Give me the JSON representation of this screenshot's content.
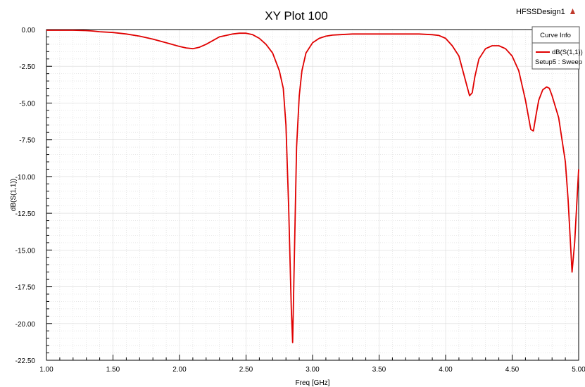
{
  "design_name": "HFSSDesign1",
  "legend": {
    "header": "Curve Info",
    "entry_name": "dB(S(1,1))",
    "entry_sub": "Setup5 : Sweep"
  },
  "colors": {
    "curve": "#e00000",
    "grid": "#d9d9d9",
    "logo": "#c0392b"
  },
  "icons": {
    "logo": "ansoft-logo-icon"
  },
  "chart_data": {
    "type": "line",
    "title": "XY Plot 100",
    "xlabel": "Freq [GHz]",
    "ylabel": "dB(S(1,1))",
    "xlim": [
      1.0,
      5.0
    ],
    "ylim": [
      -22.5,
      0.0
    ],
    "grid": true,
    "legend_position": "top-right",
    "x_ticks": [
      "1.00",
      "1.50",
      "2.00",
      "2.50",
      "3.00",
      "3.50",
      "4.00",
      "4.50",
      "5.00"
    ],
    "y_ticks": [
      "0.00",
      "-2.50",
      "-5.00",
      "-7.50",
      "-10.00",
      "-12.50",
      "-15.00",
      "-17.50",
      "-20.00",
      "-22.50"
    ],
    "series": [
      {
        "name": "dB(S(1,1))",
        "x": [
          1.0,
          1.1,
          1.2,
          1.3,
          1.35,
          1.4,
          1.5,
          1.6,
          1.7,
          1.8,
          1.9,
          2.0,
          2.05,
          2.1,
          2.15,
          2.2,
          2.25,
          2.3,
          2.35,
          2.4,
          2.45,
          2.5,
          2.55,
          2.6,
          2.65,
          2.7,
          2.75,
          2.78,
          2.8,
          2.82,
          2.84,
          2.85,
          2.86,
          2.88,
          2.9,
          2.92,
          2.95,
          3.0,
          3.05,
          3.1,
          3.15,
          3.2,
          3.3,
          3.5,
          3.7,
          3.8,
          3.9,
          3.95,
          4.0,
          4.05,
          4.1,
          4.15,
          4.18,
          4.2,
          4.22,
          4.25,
          4.3,
          4.35,
          4.4,
          4.45,
          4.5,
          4.55,
          4.6,
          4.64,
          4.66,
          4.68,
          4.7,
          4.73,
          4.76,
          4.78,
          4.8,
          4.85,
          4.9,
          4.92,
          4.95,
          4.97,
          5.0
        ],
        "y": [
          -0.05,
          -0.05,
          -0.05,
          -0.07,
          -0.1,
          -0.15,
          -0.2,
          -0.3,
          -0.45,
          -0.65,
          -0.9,
          -1.15,
          -1.25,
          -1.3,
          -1.2,
          -1.0,
          -0.75,
          -0.5,
          -0.4,
          -0.3,
          -0.25,
          -0.25,
          -0.35,
          -0.6,
          -1.0,
          -1.6,
          -2.8,
          -4.0,
          -6.5,
          -12.0,
          -19.0,
          -21.3,
          -17.0,
          -8.0,
          -4.5,
          -2.8,
          -1.6,
          -0.9,
          -0.6,
          -0.45,
          -0.38,
          -0.35,
          -0.3,
          -0.3,
          -0.3,
          -0.3,
          -0.35,
          -0.4,
          -0.6,
          -1.1,
          -1.8,
          -3.5,
          -4.5,
          -4.3,
          -3.2,
          -2.0,
          -1.3,
          -1.1,
          -1.1,
          -1.3,
          -1.8,
          -2.8,
          -4.8,
          -6.8,
          -6.9,
          -5.8,
          -4.8,
          -4.1,
          -3.9,
          -4.0,
          -4.5,
          -6.0,
          -9.0,
          -11.5,
          -16.5,
          -14.5,
          -9.5
        ]
      }
    ]
  }
}
